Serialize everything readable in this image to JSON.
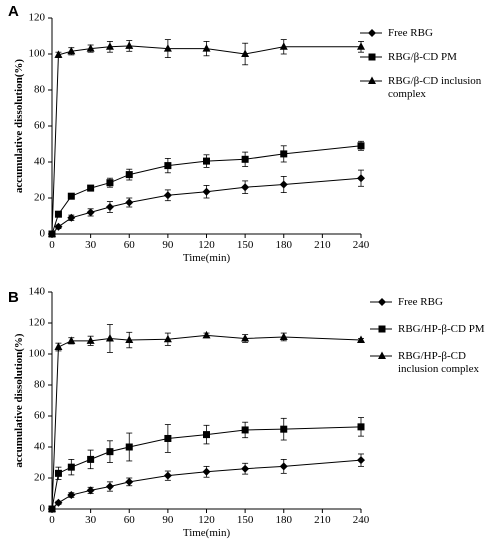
{
  "chart_data": [
    {
      "panel_label": "A",
      "type": "line",
      "xlabel": "Time(min)",
      "ylabel": "accumulative dissolution(%)",
      "xlim": [
        0,
        240
      ],
      "ylim": [
        0,
        120
      ],
      "xticks": [
        0,
        30,
        60,
        90,
        120,
        150,
        180,
        210,
        240
      ],
      "yticks": [
        0,
        20,
        40,
        60,
        80,
        100,
        120
      ],
      "legend_position": "right",
      "series": [
        {
          "name": "Free RBG",
          "marker": "diamond",
          "x": [
            0,
            5,
            15,
            30,
            45,
            60,
            90,
            120,
            150,
            180,
            240
          ],
          "y": [
            0,
            4,
            9,
            12,
            15,
            17.5,
            21.5,
            23.5,
            26,
            27.5,
            31
          ],
          "err": [
            0,
            1,
            1.5,
            2,
            3,
            2.5,
            3,
            3.5,
            3.5,
            4.5,
            4.5
          ]
        },
        {
          "name": "RBG/β-CD PM",
          "marker": "square",
          "x": [
            0,
            5,
            15,
            30,
            45,
            60,
            90,
            120,
            150,
            180,
            240
          ],
          "y": [
            0,
            11,
            21,
            25.5,
            28.5,
            33,
            38,
            40.5,
            41.5,
            44.5,
            49
          ],
          "err": [
            0,
            1,
            1.5,
            1.5,
            2.5,
            3,
            4,
            3.5,
            4,
            4.5,
            2.5
          ]
        },
        {
          "name": "RBG/β-CD inclusion complex",
          "marker": "triangle",
          "x": [
            0,
            5,
            15,
            30,
            45,
            60,
            90,
            120,
            150,
            180,
            240
          ],
          "y": [
            0,
            99.5,
            101.5,
            103,
            104,
            104.5,
            103,
            103,
            100,
            104,
            104
          ],
          "err": [
            0,
            1.5,
            2,
            2,
            3,
            3,
            5,
            4,
            6,
            4,
            3
          ]
        }
      ]
    },
    {
      "panel_label": "B",
      "type": "line",
      "xlabel": "Time(min)",
      "ylabel": "accumulative dissolution(%)",
      "xlim": [
        0,
        240
      ],
      "ylim": [
        0,
        140
      ],
      "xticks": [
        0,
        30,
        60,
        90,
        120,
        150,
        180,
        210,
        240
      ],
      "yticks": [
        0,
        20,
        40,
        60,
        80,
        100,
        120,
        140
      ],
      "legend_position": "right",
      "series": [
        {
          "name": "Free RBG",
          "marker": "diamond",
          "x": [
            0,
            5,
            15,
            30,
            45,
            60,
            90,
            120,
            150,
            180,
            240
          ],
          "y": [
            0,
            4,
            9,
            12,
            14.5,
            17.5,
            21.5,
            24,
            26,
            27.5,
            31.5
          ],
          "err": [
            0,
            1,
            1.5,
            2,
            3,
            2.5,
            3,
            3.5,
            3.5,
            4.5,
            4
          ]
        },
        {
          "name": "RBG/HP-β-CD PM",
          "marker": "square",
          "x": [
            0,
            5,
            15,
            30,
            45,
            60,
            90,
            120,
            150,
            180,
            240
          ],
          "y": [
            0,
            23,
            27,
            32,
            37,
            40,
            45.5,
            48,
            51,
            51.5,
            53
          ],
          "err": [
            0,
            4,
            5,
            6,
            7,
            9,
            9,
            6,
            5,
            7,
            6
          ]
        },
        {
          "name": "RBG/HP-β-CD inclusion complex",
          "marker": "triangle",
          "x": [
            0,
            5,
            15,
            30,
            45,
            60,
            90,
            120,
            150,
            180,
            240
          ],
          "y": [
            0,
            104.5,
            108.5,
            108.5,
            110,
            109,
            109.5,
            112,
            110,
            111,
            109
          ],
          "err": [
            0,
            2.5,
            2,
            3,
            9,
            5,
            4,
            1.5,
            2.5,
            2.5,
            1
          ]
        }
      ]
    }
  ]
}
